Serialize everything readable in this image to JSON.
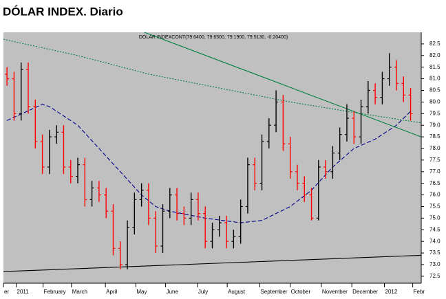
{
  "chart_data": {
    "type": "ohlc",
    "title": "DÓLAR INDEX. Diario",
    "subtitle": "DÓLAR INDEXCONT(79.6400, 79.6500, 79.1900, 79.5130, -0.20400)",
    "background": "#c0c0c0",
    "up_color": "#000000",
    "down_color": "#ff0000",
    "x": [
      0,
      1,
      2,
      3,
      4,
      5,
      6,
      7,
      8,
      9,
      10,
      11,
      12,
      13,
      14,
      15,
      16,
      17,
      18,
      19,
      20,
      21,
      22,
      23,
      24,
      25,
      26,
      27,
      28,
      29,
      30,
      31,
      32,
      33,
      34,
      35,
      36,
      37,
      38,
      39,
      40,
      41,
      42,
      43,
      44,
      45,
      46,
      47,
      48,
      49,
      50,
      51,
      52,
      53,
      54,
      55,
      56,
      57
    ],
    "open": [
      81.2,
      81.0,
      79.5,
      81.4,
      79.8,
      78.3,
      77.2,
      78.5,
      78.7,
      77.2,
      76.8,
      77.3,
      75.8,
      76.3,
      76.0,
      75.3,
      73.7,
      73.0,
      74.6,
      75.8,
      76.2,
      75.0,
      73.8,
      75.3,
      76.0,
      75.2,
      75.0,
      75.8,
      75.2,
      74.0,
      74.5,
      74.8,
      74.0,
      74.2,
      75.5,
      77.3,
      76.5,
      78.3,
      79.0,
      80.0,
      78.2,
      77.0,
      76.5,
      76.0,
      75.0,
      77.2,
      77.0,
      77.8,
      78.6,
      79.3,
      78.5,
      79.8,
      80.5,
      80.2,
      81.0,
      81.5,
      80.8,
      80.3
    ],
    "high": [
      81.5,
      81.3,
      81.7,
      81.7,
      80.1,
      78.6,
      78.8,
      79.0,
      79.0,
      77.5,
      77.6,
      77.6,
      76.6,
      76.6,
      76.3,
      75.6,
      74.0,
      74.9,
      76.1,
      76.5,
      76.5,
      75.3,
      75.6,
      76.3,
      76.3,
      75.5,
      76.1,
      76.1,
      75.5,
      74.8,
      75.1,
      75.1,
      74.5,
      75.8,
      77.6,
      77.6,
      78.6,
      79.3,
      80.5,
      80.3,
      78.5,
      77.3,
      76.8,
      76.3,
      77.5,
      77.5,
      78.1,
      78.9,
      79.9,
      79.6,
      80.1,
      80.9,
      80.8,
      81.3,
      82.1,
      81.8,
      81.1,
      80.6
    ],
    "low": [
      80.7,
      79.2,
      79.2,
      79.5,
      78.0,
      76.9,
      76.9,
      78.2,
      76.9,
      76.5,
      76.5,
      75.5,
      75.5,
      75.7,
      75.0,
      73.4,
      72.8,
      72.8,
      74.3,
      75.5,
      74.7,
      73.5,
      73.5,
      75.0,
      74.9,
      74.7,
      74.7,
      74.9,
      73.7,
      73.7,
      74.2,
      73.7,
      73.7,
      73.9,
      75.2,
      76.2,
      76.2,
      78.0,
      78.7,
      77.9,
      76.7,
      76.2,
      75.7,
      74.9,
      74.9,
      76.7,
      76.7,
      77.5,
      78.3,
      78.2,
      78.2,
      79.5,
      79.9,
      79.9,
      80.7,
      80.5,
      80.0,
      79.2
    ],
    "close": [
      81.0,
      79.5,
      81.4,
      79.8,
      78.3,
      77.2,
      78.5,
      78.7,
      77.2,
      76.8,
      77.3,
      75.8,
      76.3,
      76.0,
      75.3,
      73.7,
      73.0,
      74.6,
      75.8,
      76.2,
      75.0,
      73.8,
      75.3,
      76.0,
      75.2,
      75.0,
      75.8,
      75.2,
      74.0,
      74.5,
      74.8,
      74.0,
      74.2,
      75.5,
      77.3,
      76.5,
      78.3,
      79.0,
      80.0,
      78.2,
      77.0,
      76.5,
      76.0,
      75.0,
      77.2,
      77.0,
      77.8,
      78.6,
      79.3,
      78.5,
      79.8,
      80.5,
      80.2,
      81.0,
      81.5,
      80.8,
      80.3,
      79.5
    ],
    "lines": [
      {
        "color": "#00008b",
        "style": "dashed",
        "x": [
          0,
          5,
          6,
          10,
          13,
          16,
          19,
          21,
          23,
          28,
          33,
          36,
          40,
          43,
          46,
          49,
          52,
          55,
          57
        ],
        "values": [
          79.2,
          79.9,
          79.8,
          79.0,
          78.0,
          77.0,
          76.0,
          75.5,
          75.3,
          75.0,
          74.8,
          74.9,
          75.5,
          76.2,
          77.2,
          78.0,
          78.4,
          79.0,
          79.6
        ]
      },
      {
        "color": "#008040",
        "style": "dotted",
        "x": [
          -0.5,
          10,
          20,
          30,
          40,
          50,
          58.5
        ],
        "values": [
          82.7,
          82.0,
          81.2,
          80.6,
          80.0,
          79.5,
          79.1
        ]
      },
      {
        "color": "#008040",
        "style": "solid",
        "x": [
          19.4,
          58.5
        ],
        "values": [
          83.0,
          78.5
        ]
      },
      {
        "color": "#000000",
        "style": "solid",
        "x": [
          -0.5,
          58.5
        ],
        "values": [
          72.7,
          73.4
        ]
      }
    ],
    "xlim": [
      -0.5,
      58.5
    ],
    "xticks": [
      {
        "value": -0.5,
        "label": "er"
      },
      {
        "value": 1.3,
        "label": "2011"
      },
      {
        "value": 5.1,
        "label": "February"
      },
      {
        "value": 9.1,
        "label": "March"
      },
      {
        "value": 13.9,
        "label": "April"
      },
      {
        "value": 18.2,
        "label": "May"
      },
      {
        "value": 22.4,
        "label": "June"
      },
      {
        "value": 26.9,
        "label": "July"
      },
      {
        "value": 31.1,
        "label": "August"
      },
      {
        "value": 35.7,
        "label": "September"
      },
      {
        "value": 40.0,
        "label": "October"
      },
      {
        "value": 44.4,
        "label": "November"
      },
      {
        "value": 48.7,
        "label": "December"
      },
      {
        "value": 53.3,
        "label": "2012"
      },
      {
        "value": 57.3,
        "label": "Febr"
      }
    ],
    "ylim": [
      72.2,
      83.0
    ],
    "yticks": [
      72.5,
      {
        "value": 73,
        "label": "73.0"
      },
      73.5,
      {
        "value": 74,
        "label": "74.0"
      },
      74.5,
      {
        "value": 75,
        "label": "75.0"
      },
      75.5,
      {
        "value": 76,
        "label": "76.0"
      },
      76.5,
      {
        "value": 77,
        "label": "77.0"
      },
      77.5,
      {
        "value": 78,
        "label": "78.0"
      },
      78.5,
      {
        "value": 79,
        "label": "79.0"
      },
      79.5,
      {
        "value": 80,
        "label": "80.0"
      },
      80.5,
      {
        "value": 81,
        "label": "81.0"
      },
      81.5,
      {
        "value": 82,
        "label": "82.0"
      },
      82.5
    ]
  }
}
